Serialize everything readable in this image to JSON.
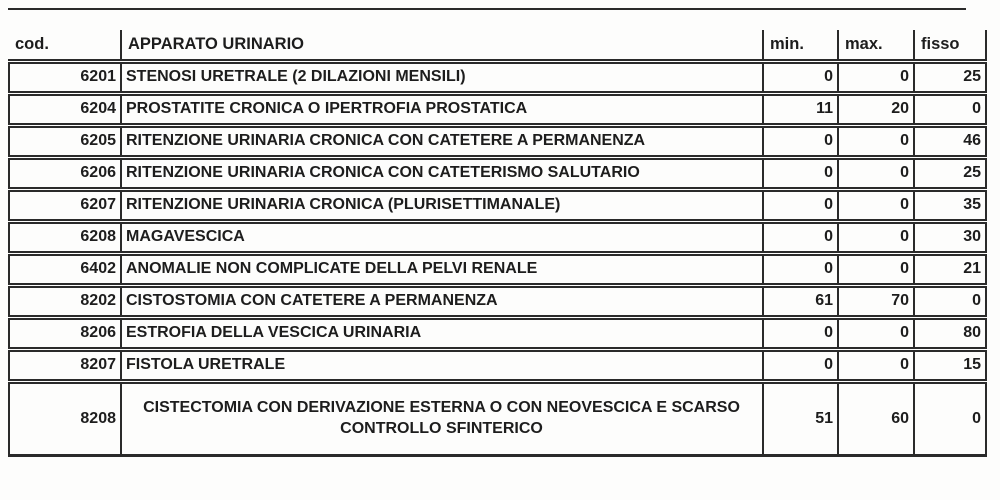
{
  "table": {
    "title_column": "APPARATO URINARIO",
    "columns": [
      {
        "key": "cod",
        "label": "cod."
      },
      {
        "key": "desc",
        "label": "APPARATO URINARIO"
      },
      {
        "key": "min",
        "label": "min."
      },
      {
        "key": "max",
        "label": "max."
      },
      {
        "key": "fisso",
        "label": "fisso"
      }
    ],
    "rows": [
      {
        "cod": "6201",
        "desc": "STENOSI URETRALE (2 DILAZIONI MENSILI)",
        "min": "0",
        "max": "0",
        "fisso": "25"
      },
      {
        "cod": "6204",
        "desc": "PROSTATITE CRONICA  O IPERTROFIA PROSTATICA",
        "min": "11",
        "max": "20",
        "fisso": "0"
      },
      {
        "cod": "6205",
        "desc": "RITENZIONE URINARIA CRONICA CON CATETERE A PERMANENZA",
        "min": "0",
        "max": "0",
        "fisso": "46"
      },
      {
        "cod": "6206",
        "desc": "RITENZIONE URINARIA CRONICA CON CATETERISMO SALUTARIO",
        "min": "0",
        "max": "0",
        "fisso": "25"
      },
      {
        "cod": "6207",
        "desc": "RITENZIONE URINARIA CRONICA (PLURISETTIMANALE)",
        "min": "0",
        "max": "0",
        "fisso": "35"
      },
      {
        "cod": "6208",
        "desc": "MAGAVESCICA",
        "min": "0",
        "max": "0",
        "fisso": "30"
      },
      {
        "cod": "6402",
        "desc": "ANOMALIE NON COMPLICATE DELLA PELVI RENALE",
        "min": "0",
        "max": "0",
        "fisso": "21"
      },
      {
        "cod": "8202",
        "desc": "CISTOSTOMIA CON CATETERE A PERMANENZA",
        "min": "61",
        "max": "70",
        "fisso": "0"
      },
      {
        "cod": "8206",
        "desc": "ESTROFIA DELLA VESCICA URINARIA",
        "min": "0",
        "max": "0",
        "fisso": "80"
      },
      {
        "cod": "8207",
        "desc": "FISTOLA URETRALE",
        "min": "0",
        "max": "0",
        "fisso": "15"
      },
      {
        "cod": "8208",
        "desc": "CISTECTOMIA CON DERIVAZIONE ESTERNA O CON NEOVESCICA E SCARSO CONTROLLO SFINTERICO",
        "min": "51",
        "max": "60",
        "fisso": "0"
      }
    ],
    "colors": {
      "text": "#1d1d1d",
      "border": "#2a2a2a",
      "background": "#fdfdfc"
    }
  }
}
